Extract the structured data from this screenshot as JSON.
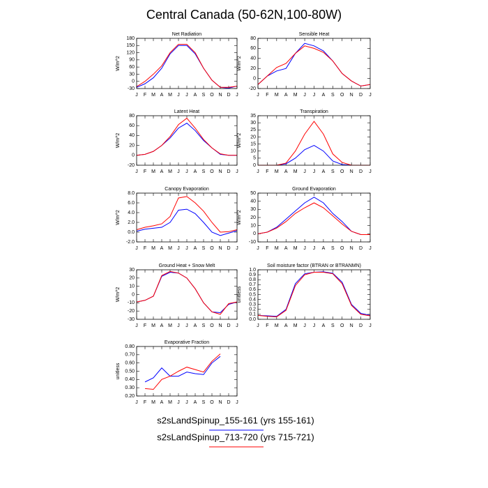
{
  "title": "Central Canada (50-62N,100-80W)",
  "legend": [
    {
      "label": "s2sLandSpinup_155-161 (yrs 155-161)",
      "color": "#0000ff"
    },
    {
      "label": "s2sLandSpinup_713-720 (yrs 715-721)",
      "color": "#ff0000"
    }
  ],
  "chart_data": [
    {
      "type": "line",
      "title": "Net Radiation",
      "ylabel": "W/m^2",
      "categories": [
        "J",
        "F",
        "M",
        "A",
        "M",
        "J",
        "J",
        "A",
        "S",
        "O",
        "N",
        "D",
        "J"
      ],
      "ylim": [
        -30,
        180
      ],
      "yticks": [
        -30,
        0,
        30,
        60,
        90,
        120,
        150,
        180
      ],
      "series": [
        {
          "color": "#0000ff",
          "values": [
            -25,
            -10,
            15,
            55,
            115,
            150,
            150,
            115,
            55,
            5,
            -25,
            -28,
            -20
          ]
        },
        {
          "color": "#ff0000",
          "values": [
            -22,
            0,
            30,
            65,
            120,
            155,
            155,
            120,
            55,
            5,
            -25,
            -25,
            -20
          ]
        }
      ]
    },
    {
      "type": "line",
      "title": "Sensible Heat",
      "ylabel": "W/m^2",
      "categories": [
        "J",
        "F",
        "M",
        "A",
        "M",
        "J",
        "J",
        "A",
        "S",
        "O",
        "N",
        "D",
        "J"
      ],
      "ylim": [
        -20,
        80
      ],
      "yticks": [
        -20,
        0,
        20,
        40,
        60,
        80
      ],
      "series": [
        {
          "color": "#0000ff",
          "values": [
            -12,
            5,
            15,
            20,
            50,
            70,
            65,
            55,
            35,
            10,
            -5,
            -15,
            -12
          ]
        },
        {
          "color": "#ff0000",
          "values": [
            -12,
            5,
            22,
            30,
            50,
            65,
            60,
            52,
            35,
            10,
            -5,
            -15,
            -12
          ]
        }
      ]
    },
    {
      "type": "line",
      "title": "Latent Heat",
      "ylabel": "W/m^2",
      "categories": [
        "J",
        "F",
        "M",
        "A",
        "M",
        "J",
        "J",
        "A",
        "S",
        "O",
        "N",
        "D",
        "J"
      ],
      "ylim": [
        -20,
        80
      ],
      "yticks": [
        -20,
        0,
        20,
        40,
        60,
        80
      ],
      "series": [
        {
          "color": "#0000ff",
          "values": [
            0,
            2,
            8,
            20,
            35,
            55,
            65,
            50,
            30,
            15,
            2,
            0,
            0
          ]
        },
        {
          "color": "#ff0000",
          "values": [
            0,
            2,
            8,
            20,
            38,
            62,
            75,
            55,
            32,
            15,
            3,
            0,
            0
          ]
        }
      ]
    },
    {
      "type": "line",
      "title": "Transpiration",
      "ylabel": "W/m^2",
      "categories": [
        "J",
        "F",
        "M",
        "A",
        "M",
        "J",
        "J",
        "A",
        "S",
        "O",
        "N",
        "D",
        "J"
      ],
      "ylim": [
        0,
        35
      ],
      "yticks": [
        0,
        5,
        10,
        15,
        20,
        25,
        30,
        35
      ],
      "series": [
        {
          "color": "#0000ff",
          "values": [
            0,
            0,
            0,
            1,
            5,
            11,
            14,
            10,
            3,
            0.5,
            0,
            0,
            0
          ]
        },
        {
          "color": "#ff0000",
          "values": [
            0,
            0,
            0,
            1.5,
            10,
            22,
            31,
            22,
            8,
            2,
            0,
            0,
            0
          ]
        }
      ]
    },
    {
      "type": "line",
      "title": "Canopy Evaporation",
      "ylabel": "W/m^2",
      "categories": [
        "J",
        "F",
        "M",
        "A",
        "M",
        "J",
        "J",
        "A",
        "S",
        "O",
        "N",
        "D",
        "J"
      ],
      "ylim": [
        -2,
        8
      ],
      "yticks": [
        {
          "value": -2,
          "label": "-2.0"
        },
        {
          "value": 0,
          "label": "0.0"
        },
        {
          "value": 2,
          "label": "2.0"
        },
        {
          "value": 4,
          "label": "4.0"
        },
        {
          "value": 6,
          "label": "6.0"
        },
        {
          "value": 8,
          "label": "8.0"
        }
      ],
      "series": [
        {
          "color": "#0000ff",
          "values": [
            0.2,
            0.6,
            0.8,
            1.0,
            2.0,
            4.5,
            4.7,
            3.8,
            2.0,
            0,
            -0.7,
            -0.2,
            0.3
          ]
        },
        {
          "color": "#ff0000",
          "values": [
            0.5,
            1.0,
            1.3,
            1.7,
            3.2,
            7.0,
            7.3,
            6.0,
            4.3,
            2.0,
            0,
            0.1,
            0.5
          ]
        }
      ]
    },
    {
      "type": "line",
      "title": "Ground Evaporation",
      "ylabel": "W/m^2",
      "categories": [
        "J",
        "F",
        "M",
        "A",
        "M",
        "J",
        "J",
        "A",
        "S",
        "O",
        "N",
        "D",
        "J"
      ],
      "ylim": [
        -10,
        50
      ],
      "yticks": [
        -10,
        0,
        10,
        20,
        30,
        40,
        50
      ],
      "series": [
        {
          "color": "#0000ff",
          "values": [
            0,
            2,
            8,
            18,
            28,
            38,
            45,
            38,
            25,
            15,
            3,
            -1,
            -1
          ]
        },
        {
          "color": "#ff0000",
          "values": [
            0,
            2,
            7,
            15,
            25,
            32,
            38,
            32,
            22,
            12,
            3,
            -1,
            -1
          ]
        }
      ]
    },
    {
      "type": "line",
      "title": "Ground Heat + Snow Melt",
      "ylabel": "W/m^2",
      "categories": [
        "J",
        "F",
        "M",
        "A",
        "M",
        "J",
        "J",
        "A",
        "S",
        "O",
        "N",
        "D",
        "J"
      ],
      "ylim": [
        -30,
        30
      ],
      "yticks": [
        -30,
        -20,
        -10,
        0,
        10,
        20,
        30
      ],
      "series": [
        {
          "color": "#0000ff",
          "values": [
            -9,
            -7,
            -2,
            22,
            27,
            26,
            20,
            7,
            -10,
            -21,
            -22,
            -12,
            -9
          ]
        },
        {
          "color": "#ff0000",
          "values": [
            -9,
            -7,
            -2,
            23,
            28,
            26,
            20,
            7,
            -10,
            -21,
            -24,
            -11,
            -9
          ]
        }
      ]
    },
    {
      "type": "line",
      "title": "Soil moisture factor (BTRAN or BTRANMN)",
      "ylabel": "unitless",
      "categories": [
        "J",
        "F",
        "M",
        "A",
        "M",
        "J",
        "J",
        "A",
        "S",
        "O",
        "N",
        "D",
        "J"
      ],
      "ylim": [
        0,
        1
      ],
      "yticks": [
        {
          "value": 0,
          "label": "0.0"
        },
        0.1,
        0.2,
        0.3,
        0.4,
        0.5,
        0.6,
        0.7,
        0.8,
        0.9,
        {
          "value": 1,
          "label": "1.0"
        }
      ],
      "series": [
        {
          "color": "#0000ff",
          "values": [
            0.08,
            0.07,
            0.06,
            0.2,
            0.72,
            0.92,
            0.95,
            0.96,
            0.93,
            0.75,
            0.3,
            0.12,
            0.08
          ]
        },
        {
          "color": "#ff0000",
          "values": [
            0.08,
            0.06,
            0.05,
            0.18,
            0.68,
            0.9,
            0.95,
            0.95,
            0.92,
            0.72,
            0.28,
            0.1,
            0.07
          ]
        }
      ]
    },
    {
      "type": "line",
      "title": "Evaporative Fraction",
      "ylabel": "unitless",
      "categories": [
        "J",
        "F",
        "M",
        "A",
        "M",
        "J",
        "J",
        "A",
        "S",
        "O",
        "N",
        "D",
        "J"
      ],
      "ylim": [
        0.2,
        0.8
      ],
      "yticks": [
        {
          "value": 0.2,
          "label": "0.20"
        },
        {
          "value": 0.3,
          "label": "0.30"
        },
        {
          "value": 0.4,
          "label": "0.40"
        },
        {
          "value": 0.5,
          "label": "0.50"
        },
        {
          "value": 0.6,
          "label": "0.60"
        },
        {
          "value": 0.7,
          "label": "0.70"
        },
        {
          "value": 0.8,
          "label": "0.80"
        }
      ],
      "series": [
        {
          "color": "#0000ff",
          "values": [
            null,
            0.37,
            0.42,
            0.54,
            0.44,
            0.44,
            0.49,
            0.47,
            0.46,
            0.6,
            0.68,
            null,
            null
          ]
        },
        {
          "color": "#ff0000",
          "values": [
            null,
            0.29,
            0.28,
            0.4,
            0.44,
            0.5,
            0.55,
            0.52,
            0.49,
            0.62,
            0.71,
            null,
            null
          ]
        }
      ]
    }
  ]
}
